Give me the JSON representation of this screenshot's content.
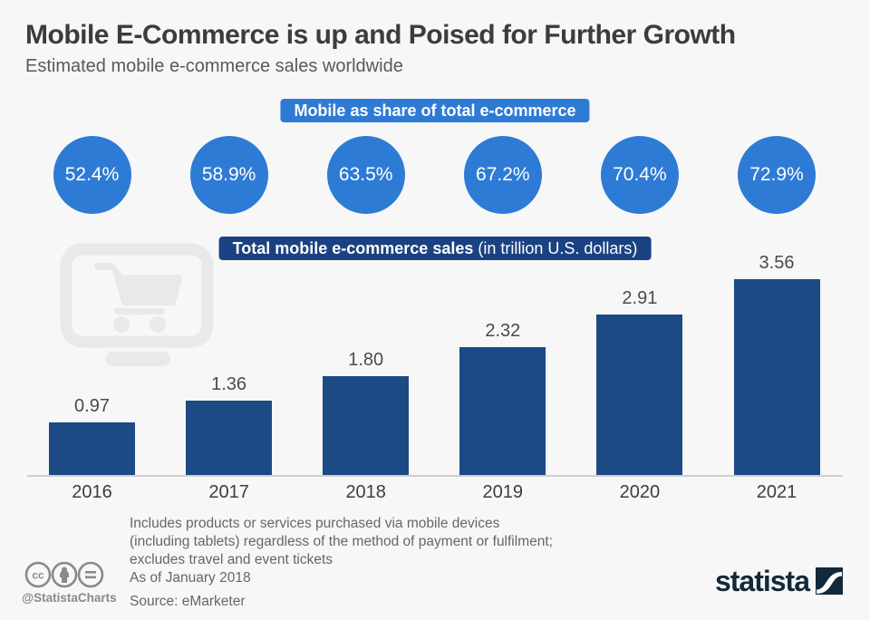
{
  "header": {
    "title": "Mobile E-Commerce is up and Poised for Further Growth",
    "subtitle": "Estimated mobile e-commerce sales worldwide"
  },
  "share_section": {
    "badge_label": "Mobile as share of total e-commerce"
  },
  "sales_section": {
    "badge_bold": "Total mobile e-commerce sales",
    "badge_regular": " (in trillion U.S. dollars)"
  },
  "chart_data": {
    "type": "bar",
    "title": "Mobile E-Commerce is up and Poised for Further Growth",
    "subtitle": "Estimated mobile e-commerce sales worldwide",
    "categories": [
      "2016",
      "2017",
      "2018",
      "2019",
      "2020",
      "2021"
    ],
    "series": [
      {
        "name": "Mobile as share of total e-commerce",
        "unit": "%",
        "values": [
          52.4,
          58.9,
          63.5,
          67.2,
          70.4,
          72.9
        ],
        "display": [
          "52.4%",
          "58.9%",
          "63.5%",
          "67.2%",
          "70.4%",
          "72.9%"
        ],
        "style": "circle-labels"
      },
      {
        "name": "Total mobile e-commerce sales",
        "unit": "trillion U.S. dollars",
        "values": [
          0.97,
          1.36,
          1.8,
          2.32,
          2.91,
          3.56
        ],
        "display": [
          "0.97",
          "1.36",
          "1.80",
          "2.32",
          "2.91",
          "3.56"
        ],
        "style": "bar"
      }
    ],
    "ylim": [
      0,
      3.56
    ],
    "grid": false,
    "legend_position": "none",
    "data_labels": true
  },
  "footer": {
    "note_lines": [
      "Includes products or services purchased via mobile devices",
      "(including tablets) regardless of the method of payment or fulfilment;",
      "excludes travel and event tickets",
      "As of January 2018"
    ],
    "source": "Source: eMarketer",
    "credit_handle": "@StatistaCharts",
    "brand": "statista"
  },
  "icons": {
    "watermark": "shopping-cart-monitor-icon",
    "license": [
      "cc-icon",
      "attribution-person-icon",
      "no-derivatives-icon"
    ],
    "brand_mark": "statista-s-curve-icon"
  },
  "colors": {
    "background": "#f7f7f7",
    "accent_blue": "#2e7bd6",
    "navy": "#1b4a84",
    "badge_navy": "#1a4282",
    "title_gray": "#3c3c3c",
    "text_gray": "#666666",
    "watermark_gray": "#e9e9e9",
    "brand_navy": "#12293b"
  }
}
